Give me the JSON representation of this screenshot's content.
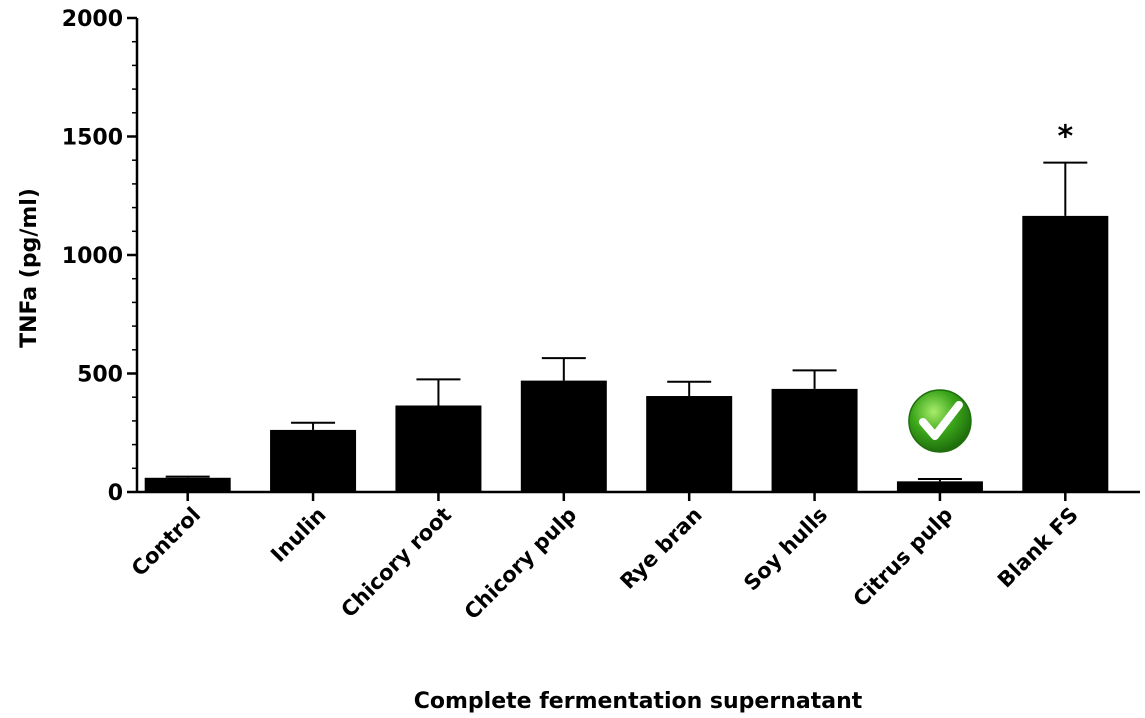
{
  "chart_data": {
    "type": "bar",
    "title": "",
    "xlabel": "Complete fermentation supernatant",
    "ylabel": "TNFa (pg/ml)",
    "ylim": [
      0,
      2000
    ],
    "yticks": [
      "0",
      "500",
      "1000",
      "1500",
      "2000"
    ],
    "categories": [
      "Control",
      "Inulin",
      "Chicory root",
      "Chicory pulp",
      "Rye bran",
      "Soy hulls",
      "Citrus pulp",
      "Blank FS"
    ],
    "values": [
      60,
      262,
      365,
      470,
      405,
      435,
      45,
      1165
    ],
    "errors": [
      5,
      30,
      110,
      95,
      60,
      78,
      10,
      225
    ],
    "annotations": [
      {
        "category": "Blank FS",
        "text": "*"
      },
      {
        "category": "Citrus pulp",
        "icon": "checkmark-icon"
      }
    ],
    "bar_color": "#000000",
    "check_color": "#3aa51a"
  }
}
